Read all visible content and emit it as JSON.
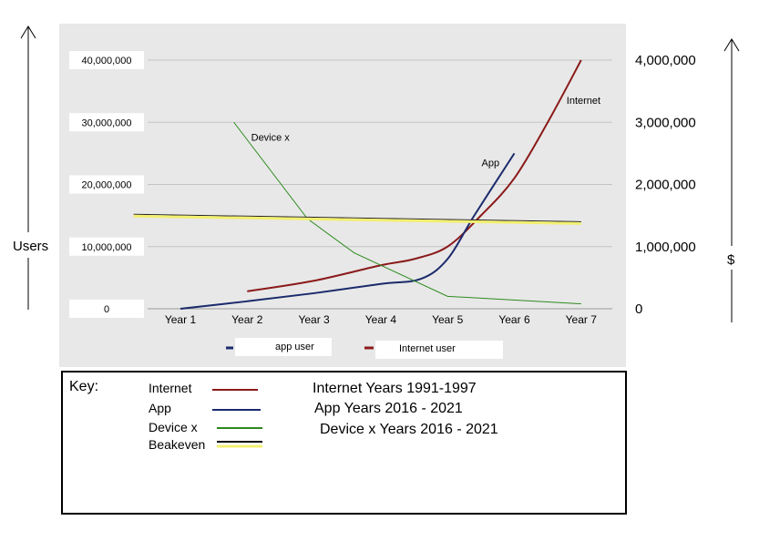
{
  "chart_data": {
    "type": "line",
    "categories": [
      "Year 1",
      "Year 2",
      "Year 3",
      "Year 4",
      "Year 5",
      "Year 6",
      "Year 7"
    ],
    "left_axis": {
      "label": "Users",
      "ticks": [
        "0",
        "10,000,000",
        "20,000,000",
        "30,000,000",
        "40,000,000"
      ],
      "ylim": [
        0,
        40000000
      ]
    },
    "right_axis": {
      "label": "$",
      "ticks": [
        "0",
        "1,000,000",
        "2,000,000",
        "3,000,000",
        "4,000,000"
      ],
      "ylim": [
        0,
        4000000
      ]
    },
    "series": [
      {
        "name": "Internet",
        "color": "#8b1a1a",
        "axis": "left",
        "values": [
          [
            2,
            2800000
          ],
          [
            3,
            4500000
          ],
          [
            4,
            7000000
          ],
          [
            4.5,
            8000000
          ],
          [
            5,
            10000000
          ],
          [
            5.5,
            15000000
          ],
          [
            6,
            21000000
          ],
          [
            6.5,
            30000000
          ],
          [
            7,
            40000000
          ]
        ]
      },
      {
        "name": "App",
        "color": "#1a2a6c",
        "axis": "left",
        "values": [
          [
            1,
            0
          ],
          [
            2,
            1200000
          ],
          [
            3,
            2500000
          ],
          [
            4,
            4000000
          ],
          [
            4.6,
            4800000
          ],
          [
            5,
            8000000
          ],
          [
            5.4,
            15000000
          ],
          [
            6,
            25000000
          ]
        ]
      },
      {
        "name": "Device x",
        "color": "#2d8a1e",
        "axis": "right",
        "values": [
          [
            1.8,
            3000000
          ],
          [
            2.9,
            1450000
          ],
          [
            3.6,
            900000
          ],
          [
            5,
            200000
          ],
          [
            7,
            80000
          ]
        ]
      },
      {
        "name": "Beakeven",
        "color": "#f2ef70",
        "axis": "left",
        "values": [
          [
            0.3,
            15200000
          ],
          [
            7,
            14000000
          ]
        ]
      }
    ],
    "annotations": [
      {
        "text": "Device x",
        "series": "Device x"
      },
      {
        "text": "App",
        "series": "App"
      },
      {
        "text": "Internet",
        "series": "Internet"
      }
    ],
    "legend": [
      {
        "label": "app user",
        "color": "#1a2a6c"
      },
      {
        "label": "Internet user",
        "color": "#8b1a1a"
      }
    ],
    "grid": true,
    "legend_position": "bottom"
  },
  "key_box": {
    "title": "Key:",
    "items": [
      {
        "label": "Internet",
        "color": "#8b1a1a",
        "note": "Internet Years 1991-1997"
      },
      {
        "label": "App",
        "color": "#1a2a6c",
        "note": "App Years 2016 - 2021"
      },
      {
        "label": "Device x",
        "color": "#2d8a1e",
        "note": "Device x Years 2016 - 2021"
      },
      {
        "label": "Beakeven",
        "color": "#f2ef70",
        "note": ""
      }
    ]
  }
}
